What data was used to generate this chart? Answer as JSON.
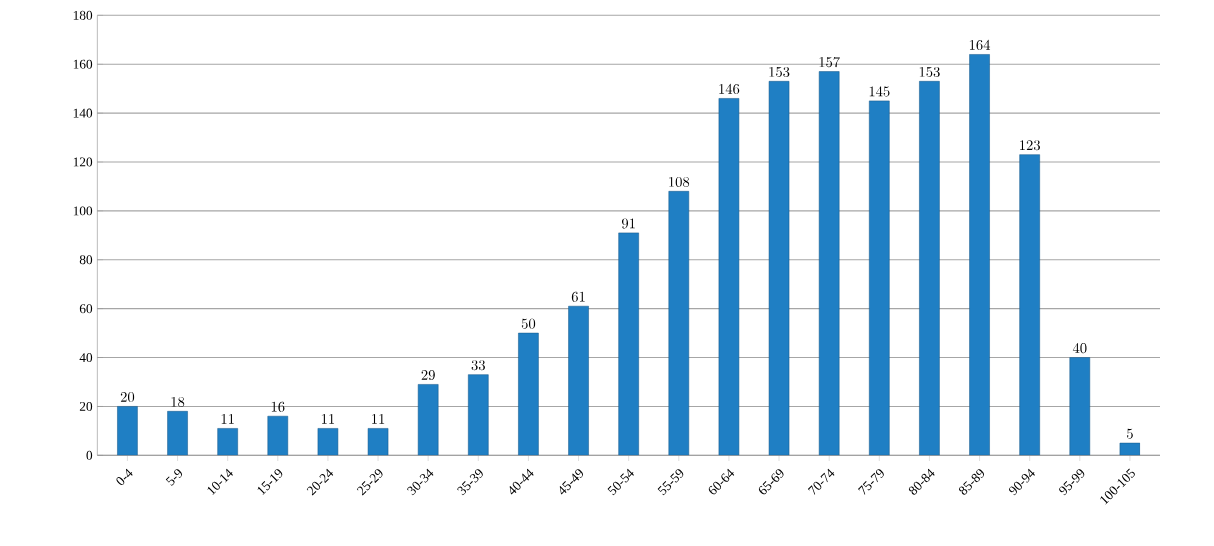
{
  "chart_data": {
    "type": "bar",
    "categories": [
      "0-4",
      "5-9",
      "10-14",
      "15-19",
      "20-24",
      "25-29",
      "30-34",
      "35-39",
      "40-44",
      "45-49",
      "50-54",
      "55-59",
      "60-64",
      "65-69",
      "70-74",
      "75-79",
      "80-84",
      "85-89",
      "90-94",
      "95-99",
      "100-105"
    ],
    "values": [
      20,
      18,
      11,
      16,
      11,
      11,
      29,
      33,
      50,
      61,
      91,
      108,
      146,
      153,
      157,
      145,
      153,
      164,
      123,
      40,
      5
    ],
    "color": "#1f7fc4",
    "ylim": [
      0,
      180
    ],
    "yticks": [
      0,
      20,
      40,
      60,
      80,
      100,
      120,
      140,
      160,
      180
    ],
    "grid": "y",
    "data_labels": true
  }
}
